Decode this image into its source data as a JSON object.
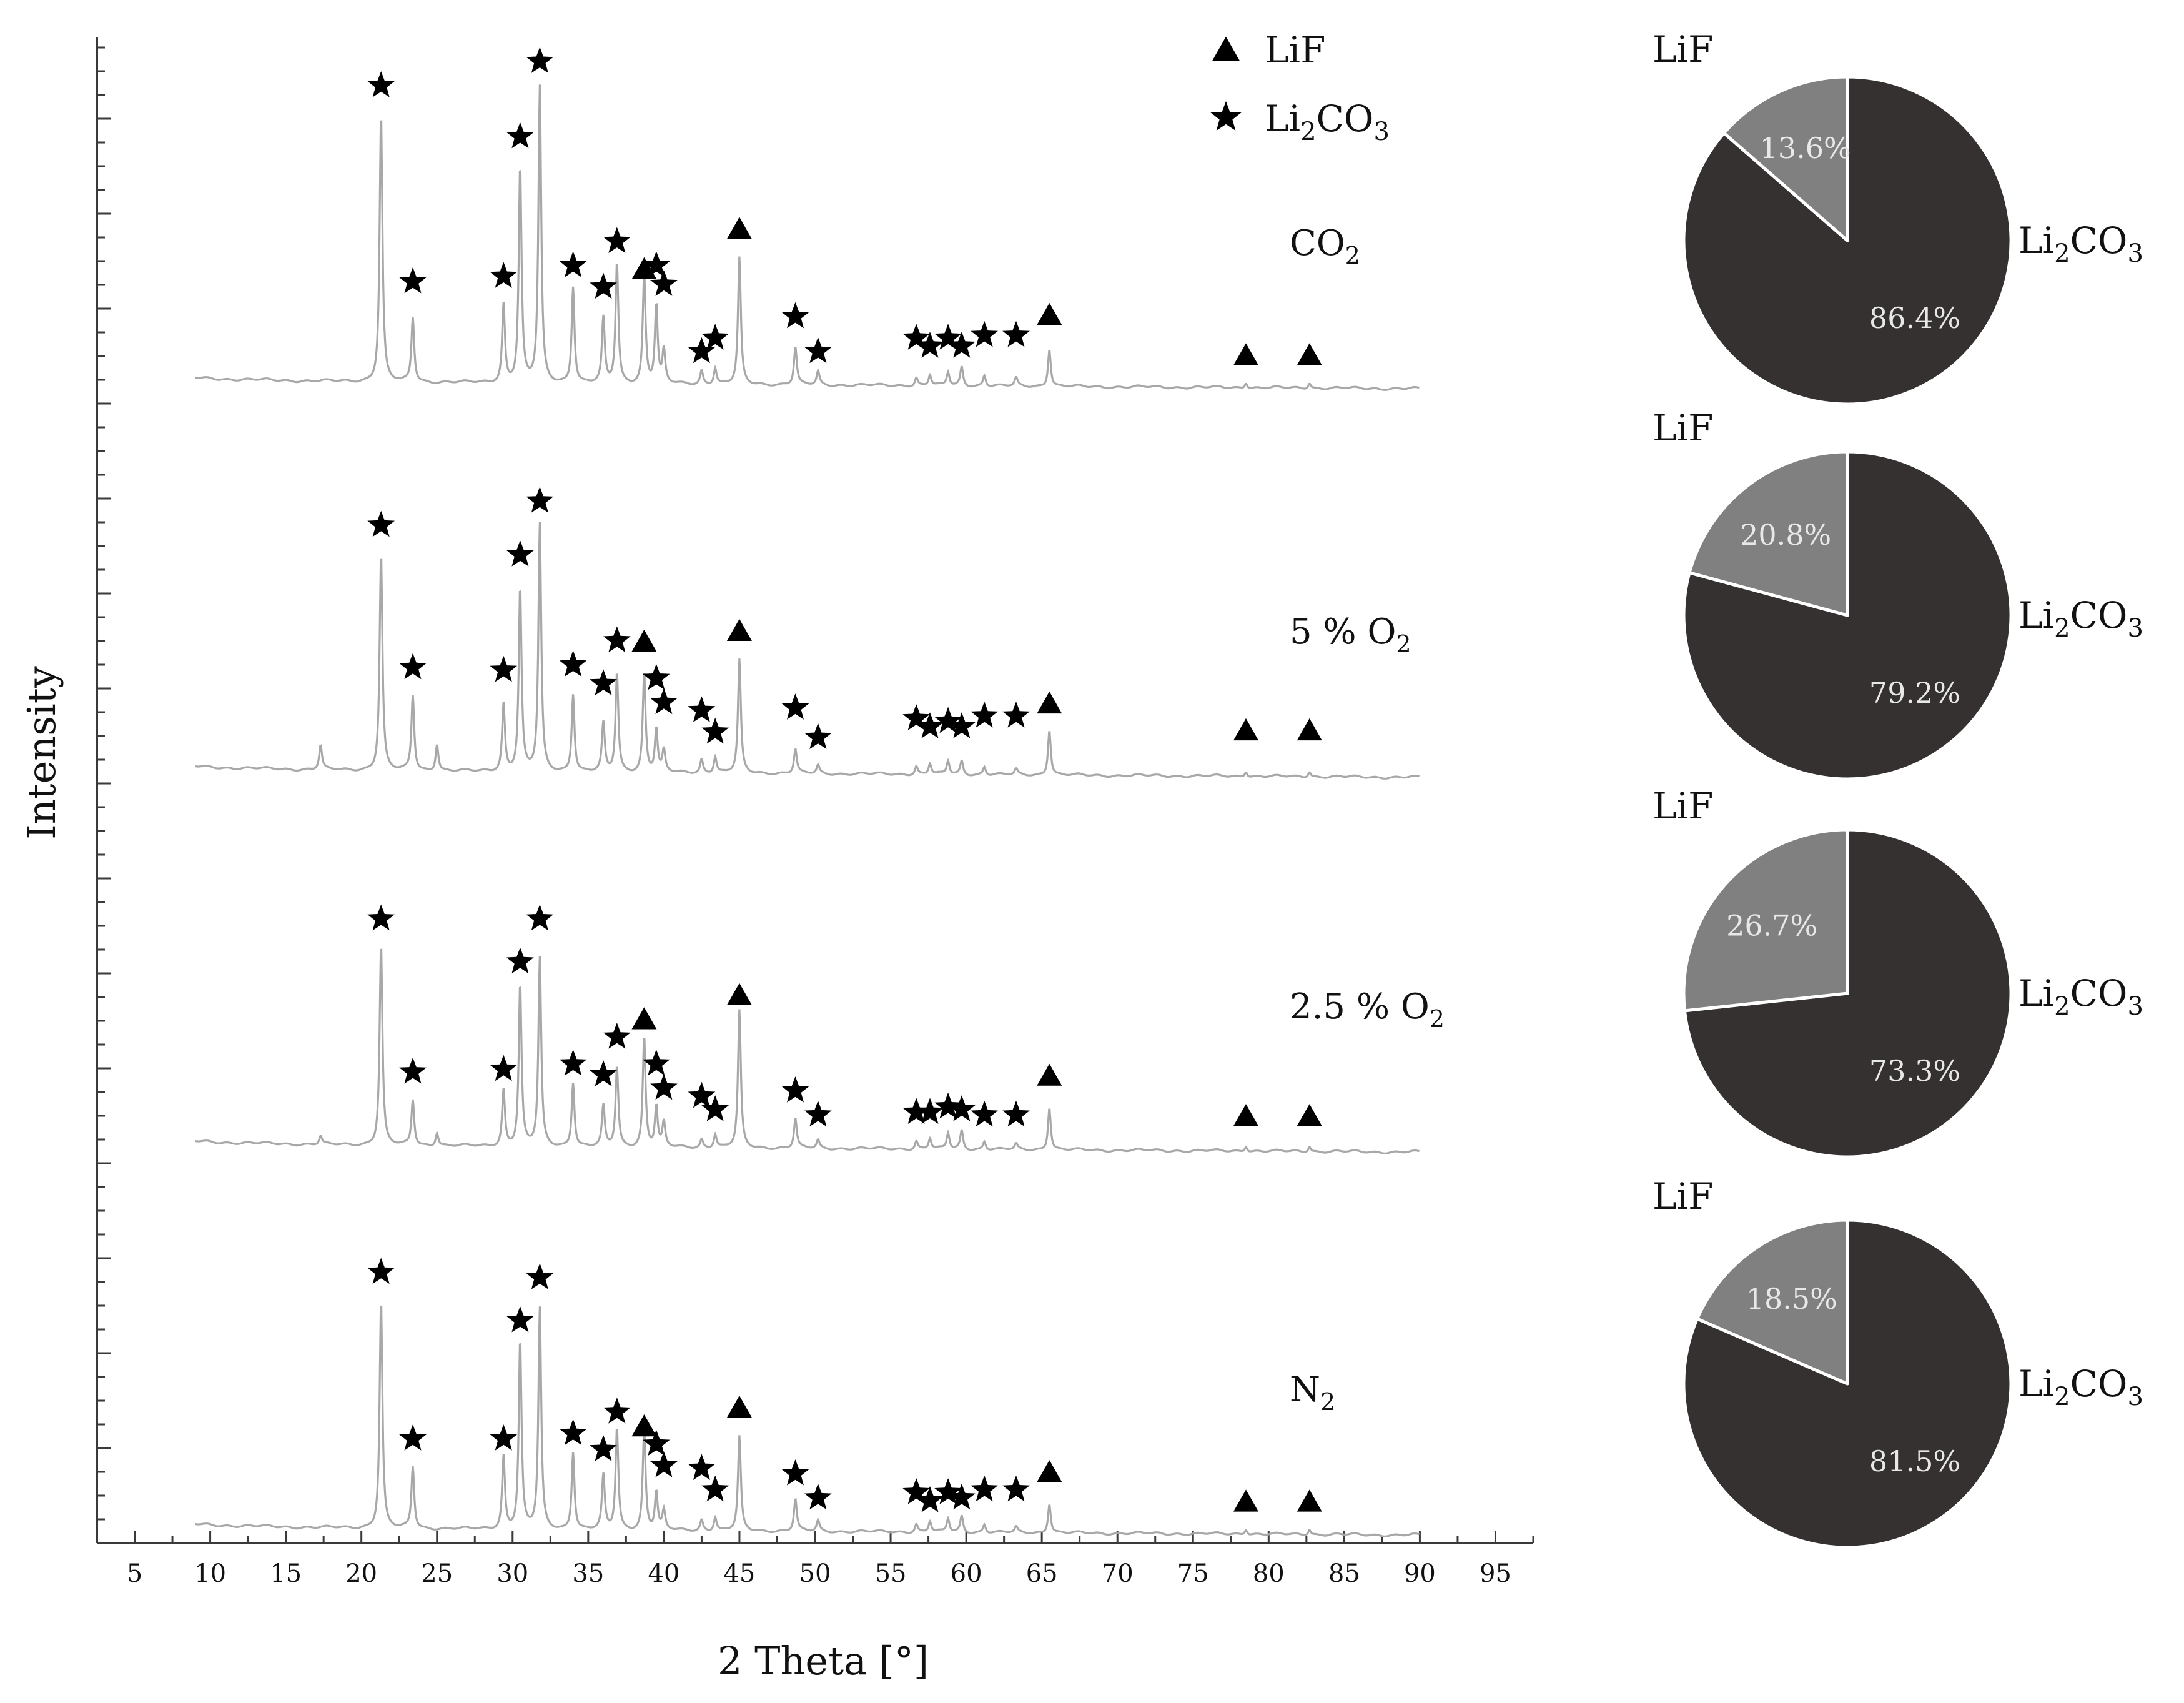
{
  "chart_data": [
    {
      "type": "line",
      "title": "",
      "xlabel": "2 Theta [°]",
      "ylabel": "Intensity",
      "xlim": [
        2.5,
        97.5
      ],
      "xticks": [
        5,
        10,
        15,
        20,
        25,
        30,
        35,
        40,
        45,
        50,
        55,
        60,
        65,
        70,
        75,
        80,
        85,
        90,
        95
      ],
      "yticks_labeled": false,
      "grid": false,
      "legend": {
        "position": "top-center",
        "entries": [
          {
            "symbol": "triangle",
            "label": "LiF",
            "name_main": "LiF",
            "name_sub": ""
          },
          {
            "symbol": "star",
            "label": "Li2CO3",
            "name_main": "Li",
            "name_sub1": "2",
            "name_mid": "CO",
            "name_sub2": "3"
          }
        ]
      },
      "peak_markers": {
        "li2co3_2theta": [
          21.3,
          23.4,
          29.4,
          30.5,
          31.8,
          34.0,
          36.0,
          36.9,
          39.5,
          40.0,
          42.5,
          43.4,
          48.7,
          50.2,
          56.7,
          57.6,
          58.8,
          59.7,
          61.2,
          63.3
        ],
        "lif_2theta": [
          38.7,
          45.0,
          65.5,
          78.5,
          82.7
        ]
      },
      "series": [
        {
          "name": "CO2",
          "label_main": "CO",
          "label_sub": "2",
          "peaks": [
            [
              21.3,
              1.0
            ],
            [
              23.4,
              0.24
            ],
            [
              29.4,
              0.29
            ],
            [
              30.5,
              0.8
            ],
            [
              31.8,
              1.1
            ],
            [
              34.0,
              0.36
            ],
            [
              36.0,
              0.24
            ],
            [
              36.9,
              0.45
            ],
            [
              38.7,
              0.41
            ],
            [
              39.5,
              0.29
            ],
            [
              40.0,
              0.12
            ],
            [
              42.5,
              0.05
            ],
            [
              43.4,
              0.06
            ],
            [
              45.0,
              0.47
            ],
            [
              48.7,
              0.14
            ],
            [
              50.2,
              0.05
            ],
            [
              56.7,
              0.03
            ],
            [
              57.6,
              0.04
            ],
            [
              58.8,
              0.05
            ],
            [
              59.7,
              0.07
            ],
            [
              61.2,
              0.04
            ],
            [
              63.3,
              0.03
            ],
            [
              65.5,
              0.14
            ],
            [
              78.5,
              0.02
            ],
            [
              82.7,
              0.02
            ]
          ],
          "li2co3_markers": [
            [
              21.3,
              1.1
            ],
            [
              23.4,
              0.37
            ],
            [
              29.4,
              0.39
            ],
            [
              30.5,
              0.91
            ],
            [
              31.8,
              1.19
            ],
            [
              34.0,
              0.43
            ],
            [
              36.0,
              0.35
            ],
            [
              36.9,
              0.52
            ],
            [
              39.5,
              0.43
            ],
            [
              40.0,
              0.36
            ],
            [
              42.5,
              0.11
            ],
            [
              43.4,
              0.16
            ],
            [
              48.7,
              0.24
            ],
            [
              50.2,
              0.11
            ],
            [
              56.7,
              0.16
            ],
            [
              57.6,
              0.13
            ],
            [
              58.8,
              0.16
            ],
            [
              59.7,
              0.13
            ],
            [
              61.2,
              0.17
            ],
            [
              63.3,
              0.17
            ]
          ],
          "lif_markers": [
            [
              38.7,
              0.42
            ],
            [
              45.0,
              0.57
            ],
            [
              65.5,
              0.25
            ],
            [
              78.5,
              0.1
            ],
            [
              82.7,
              0.1
            ]
          ]
        },
        {
          "name": "5 % O2",
          "label_main": "5 % O",
          "label_sub": "2",
          "peaks": [
            [
              17.3,
              0.09
            ],
            [
              21.3,
              0.81
            ],
            [
              23.4,
              0.28
            ],
            [
              25.0,
              0.1
            ],
            [
              29.4,
              0.25
            ],
            [
              30.5,
              0.68
            ],
            [
              31.8,
              0.92
            ],
            [
              34.0,
              0.29
            ],
            [
              36.0,
              0.18
            ],
            [
              36.9,
              0.37
            ],
            [
              38.7,
              0.37
            ],
            [
              39.5,
              0.16
            ],
            [
              40.0,
              0.08
            ],
            [
              42.5,
              0.05
            ],
            [
              43.4,
              0.06
            ],
            [
              45.0,
              0.42
            ],
            [
              48.7,
              0.09
            ],
            [
              50.2,
              0.03
            ],
            [
              56.7,
              0.03
            ],
            [
              57.6,
              0.04
            ],
            [
              58.8,
              0.05
            ],
            [
              59.7,
              0.05
            ],
            [
              61.2,
              0.03
            ],
            [
              63.3,
              0.02
            ],
            [
              65.5,
              0.17
            ],
            [
              78.5,
              0.02
            ],
            [
              82.7,
              0.02
            ]
          ],
          "li2co3_markers": [
            [
              21.3,
              0.91
            ],
            [
              23.4,
              0.38
            ],
            [
              29.4,
              0.37
            ],
            [
              30.5,
              0.8
            ],
            [
              31.8,
              1.0
            ],
            [
              34.0,
              0.39
            ],
            [
              36.0,
              0.32
            ],
            [
              36.9,
              0.48
            ],
            [
              39.5,
              0.34
            ],
            [
              40.0,
              0.25
            ],
            [
              42.5,
              0.22
            ],
            [
              43.4,
              0.14
            ],
            [
              48.7,
              0.23
            ],
            [
              50.2,
              0.12
            ],
            [
              56.7,
              0.19
            ],
            [
              57.6,
              0.16
            ],
            [
              58.8,
              0.18
            ],
            [
              59.7,
              0.16
            ],
            [
              61.2,
              0.2
            ],
            [
              63.3,
              0.2
            ]
          ],
          "lif_markers": [
            [
              38.7,
              0.48
            ],
            [
              45.0,
              0.52
            ],
            [
              65.5,
              0.25
            ],
            [
              78.5,
              0.15
            ],
            [
              82.7,
              0.15
            ]
          ]
        },
        {
          "name": "2.5 % O2",
          "label_main": "2.5 % O",
          "label_sub": "2",
          "peaks": [
            [
              17.3,
              0.03
            ],
            [
              21.3,
              0.75
            ],
            [
              23.4,
              0.17
            ],
            [
              25.0,
              0.05
            ],
            [
              29.4,
              0.21
            ],
            [
              30.5,
              0.6
            ],
            [
              31.8,
              0.7
            ],
            [
              34.0,
              0.24
            ],
            [
              36.0,
              0.15
            ],
            [
              36.9,
              0.3
            ],
            [
              38.7,
              0.41
            ],
            [
              39.5,
              0.15
            ],
            [
              40.0,
              0.09
            ],
            [
              42.5,
              0.03
            ],
            [
              43.4,
              0.05
            ],
            [
              45.0,
              0.51
            ],
            [
              48.7,
              0.11
            ],
            [
              50.2,
              0.03
            ],
            [
              56.7,
              0.03
            ],
            [
              57.6,
              0.04
            ],
            [
              58.8,
              0.06
            ],
            [
              59.7,
              0.07
            ],
            [
              61.2,
              0.03
            ],
            [
              63.3,
              0.02
            ],
            [
              65.5,
              0.16
            ],
            [
              78.5,
              0.02
            ],
            [
              82.7,
              0.02
            ]
          ],
          "li2co3_markers": [
            [
              21.3,
              0.84
            ],
            [
              23.4,
              0.27
            ],
            [
              29.4,
              0.28
            ],
            [
              30.5,
              0.68
            ],
            [
              31.8,
              0.84
            ],
            [
              34.0,
              0.3
            ],
            [
              36.0,
              0.26
            ],
            [
              36.9,
              0.4
            ],
            [
              39.5,
              0.3
            ],
            [
              40.0,
              0.21
            ],
            [
              42.5,
              0.18
            ],
            [
              43.4,
              0.13
            ],
            [
              48.7,
              0.2
            ],
            [
              50.2,
              0.11
            ],
            [
              56.7,
              0.12
            ],
            [
              57.6,
              0.12
            ],
            [
              58.8,
              0.14
            ],
            [
              59.7,
              0.13
            ],
            [
              61.2,
              0.11
            ],
            [
              63.3,
              0.11
            ]
          ],
          "lif_markers": [
            [
              38.7,
              0.47
            ],
            [
              45.0,
              0.56
            ],
            [
              65.5,
              0.26
            ],
            [
              78.5,
              0.11
            ],
            [
              82.7,
              0.11
            ]
          ]
        },
        {
          "name": "N2",
          "label_main": "N",
          "label_sub": "2",
          "peaks": [
            [
              21.3,
              0.85
            ],
            [
              23.4,
              0.23
            ],
            [
              29.4,
              0.27
            ],
            [
              30.5,
              0.7
            ],
            [
              31.8,
              0.82
            ],
            [
              34.0,
              0.29
            ],
            [
              36.0,
              0.2
            ],
            [
              36.9,
              0.38
            ],
            [
              38.7,
              0.38
            ],
            [
              39.5,
              0.14
            ],
            [
              40.0,
              0.07
            ],
            [
              42.5,
              0.04
            ],
            [
              43.4,
              0.05
            ],
            [
              45.0,
              0.35
            ],
            [
              48.7,
              0.12
            ],
            [
              50.2,
              0.04
            ],
            [
              56.7,
              0.03
            ],
            [
              57.6,
              0.04
            ],
            [
              58.8,
              0.05
            ],
            [
              59.7,
              0.06
            ],
            [
              61.2,
              0.03
            ],
            [
              63.3,
              0.02
            ],
            [
              65.5,
              0.11
            ],
            [
              78.5,
              0.02
            ],
            [
              82.7,
              0.02
            ]
          ],
          "li2co3_markers": [
            [
              21.3,
              0.95
            ],
            [
              23.4,
              0.33
            ],
            [
              29.4,
              0.33
            ],
            [
              30.5,
              0.77
            ],
            [
              31.8,
              0.93
            ],
            [
              34.0,
              0.35
            ],
            [
              36.0,
              0.29
            ],
            [
              36.9,
              0.43
            ],
            [
              39.5,
              0.31
            ],
            [
              40.0,
              0.23
            ],
            [
              42.5,
              0.22
            ],
            [
              43.4,
              0.14
            ],
            [
              48.7,
              0.2
            ],
            [
              50.2,
              0.11
            ],
            [
              56.7,
              0.13
            ],
            [
              57.6,
              0.1
            ],
            [
              58.8,
              0.13
            ],
            [
              59.7,
              0.11
            ],
            [
              61.2,
              0.14
            ],
            [
              63.3,
              0.14
            ]
          ],
          "lif_markers": [
            [
              38.7,
              0.38
            ],
            [
              45.0,
              0.45
            ],
            [
              65.5,
              0.21
            ],
            [
              78.5,
              0.1
            ],
            [
              82.7,
              0.1
            ]
          ]
        }
      ]
    },
    {
      "type": "pie",
      "title": "",
      "charts": [
        {
          "sample": "CO2",
          "slices": [
            {
              "name": "LiF",
              "value": 13.6,
              "pct_label": "13.6%"
            },
            {
              "name": "Li2CO3",
              "name_main": "Li",
              "name_sub1": "2",
              "name_mid": "CO",
              "name_sub2": "3",
              "value": 86.4,
              "pct_label": "86.4%"
            }
          ]
        },
        {
          "sample": "5 % O2",
          "slices": [
            {
              "name": "LiF",
              "value": 20.8,
              "pct_label": "20.8%"
            },
            {
              "name": "Li2CO3",
              "name_main": "Li",
              "name_sub1": "2",
              "name_mid": "CO",
              "name_sub2": "3",
              "value": 79.2,
              "pct_label": "79.2%"
            }
          ]
        },
        {
          "sample": "2.5 % O2",
          "slices": [
            {
              "name": "LiF",
              "value": 26.7,
              "pct_label": "26.7%"
            },
            {
              "name": "Li2CO3",
              "name_main": "Li",
              "name_sub1": "2",
              "name_mid": "CO",
              "name_sub2": "3",
              "value": 73.3,
              "pct_label": "73.3%"
            }
          ]
        },
        {
          "sample": "N2",
          "slices": [
            {
              "name": "LiF",
              "value": 18.5,
              "pct_label": "18.5%"
            },
            {
              "name": "Li2CO3",
              "name_main": "Li",
              "name_sub1": "2",
              "name_mid": "CO",
              "name_sub2": "3",
              "value": 81.5,
              "pct_label": "81.5%"
            }
          ]
        }
      ]
    }
  ],
  "colors": {
    "background": "#ffffff",
    "axis": "#3a3a3a",
    "trace": "#a8a8a8",
    "marker": "#000000",
    "text": "#111111",
    "pie_lif": "#808080",
    "pie_li2co3": "#353130",
    "pie_border": "#ffffff",
    "pie_label_text": "#e8e8e8"
  }
}
